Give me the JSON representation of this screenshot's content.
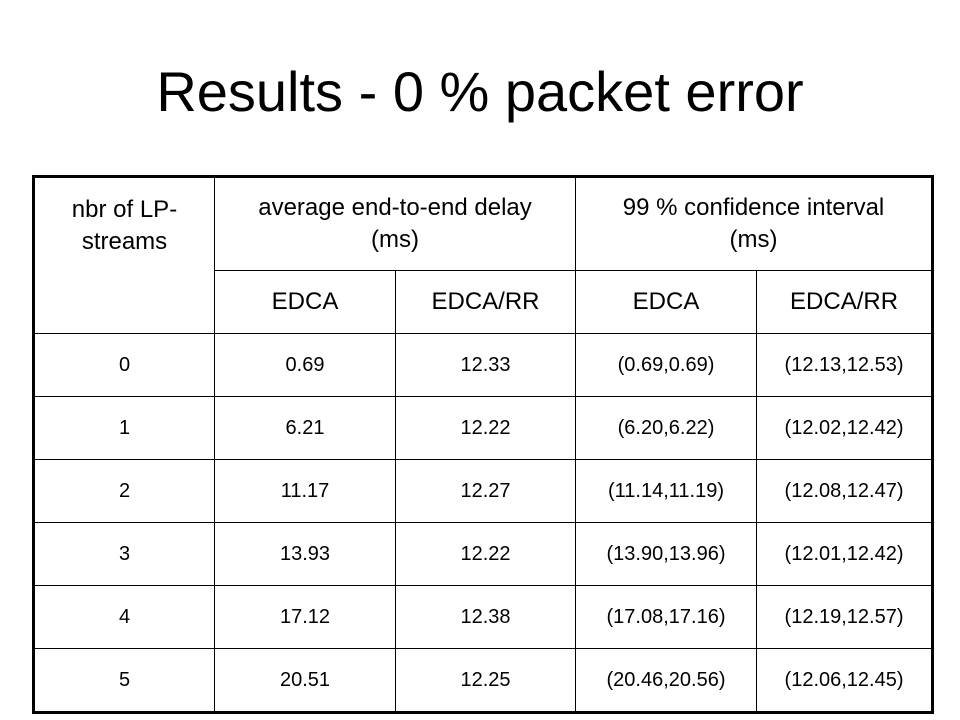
{
  "slide": {
    "title": "Results - 0 % packet error"
  },
  "table": {
    "header": {
      "streams": "nbr of LP-\nstreams",
      "delay": "average end-to-end delay (ms)",
      "confidence": "99 % confidence interval (ms)",
      "sub": [
        "EDCA",
        "EDCA/RR",
        "EDCA",
        "EDCA/RR"
      ]
    },
    "rows": [
      [
        "0",
        "0.69",
        "12.33",
        "(0.69,0.69)",
        "(12.13,12.53)"
      ],
      [
        "1",
        "6.21",
        "12.22",
        "(6.20,6.22)",
        "(12.02,12.42)"
      ],
      [
        "2",
        "11.17",
        "12.27",
        "(11.14,11.19)",
        "(12.08,12.47)"
      ],
      [
        "3",
        "13.93",
        "12.22",
        "(13.90,13.96)",
        "(12.01,12.42)"
      ],
      [
        "4",
        "17.12",
        "12.38",
        "(17.08,17.16)",
        "(12.19,12.57)"
      ],
      [
        "5",
        "20.51",
        "12.25",
        "(20.46,20.56)",
        "(12.06,12.45)"
      ]
    ]
  }
}
